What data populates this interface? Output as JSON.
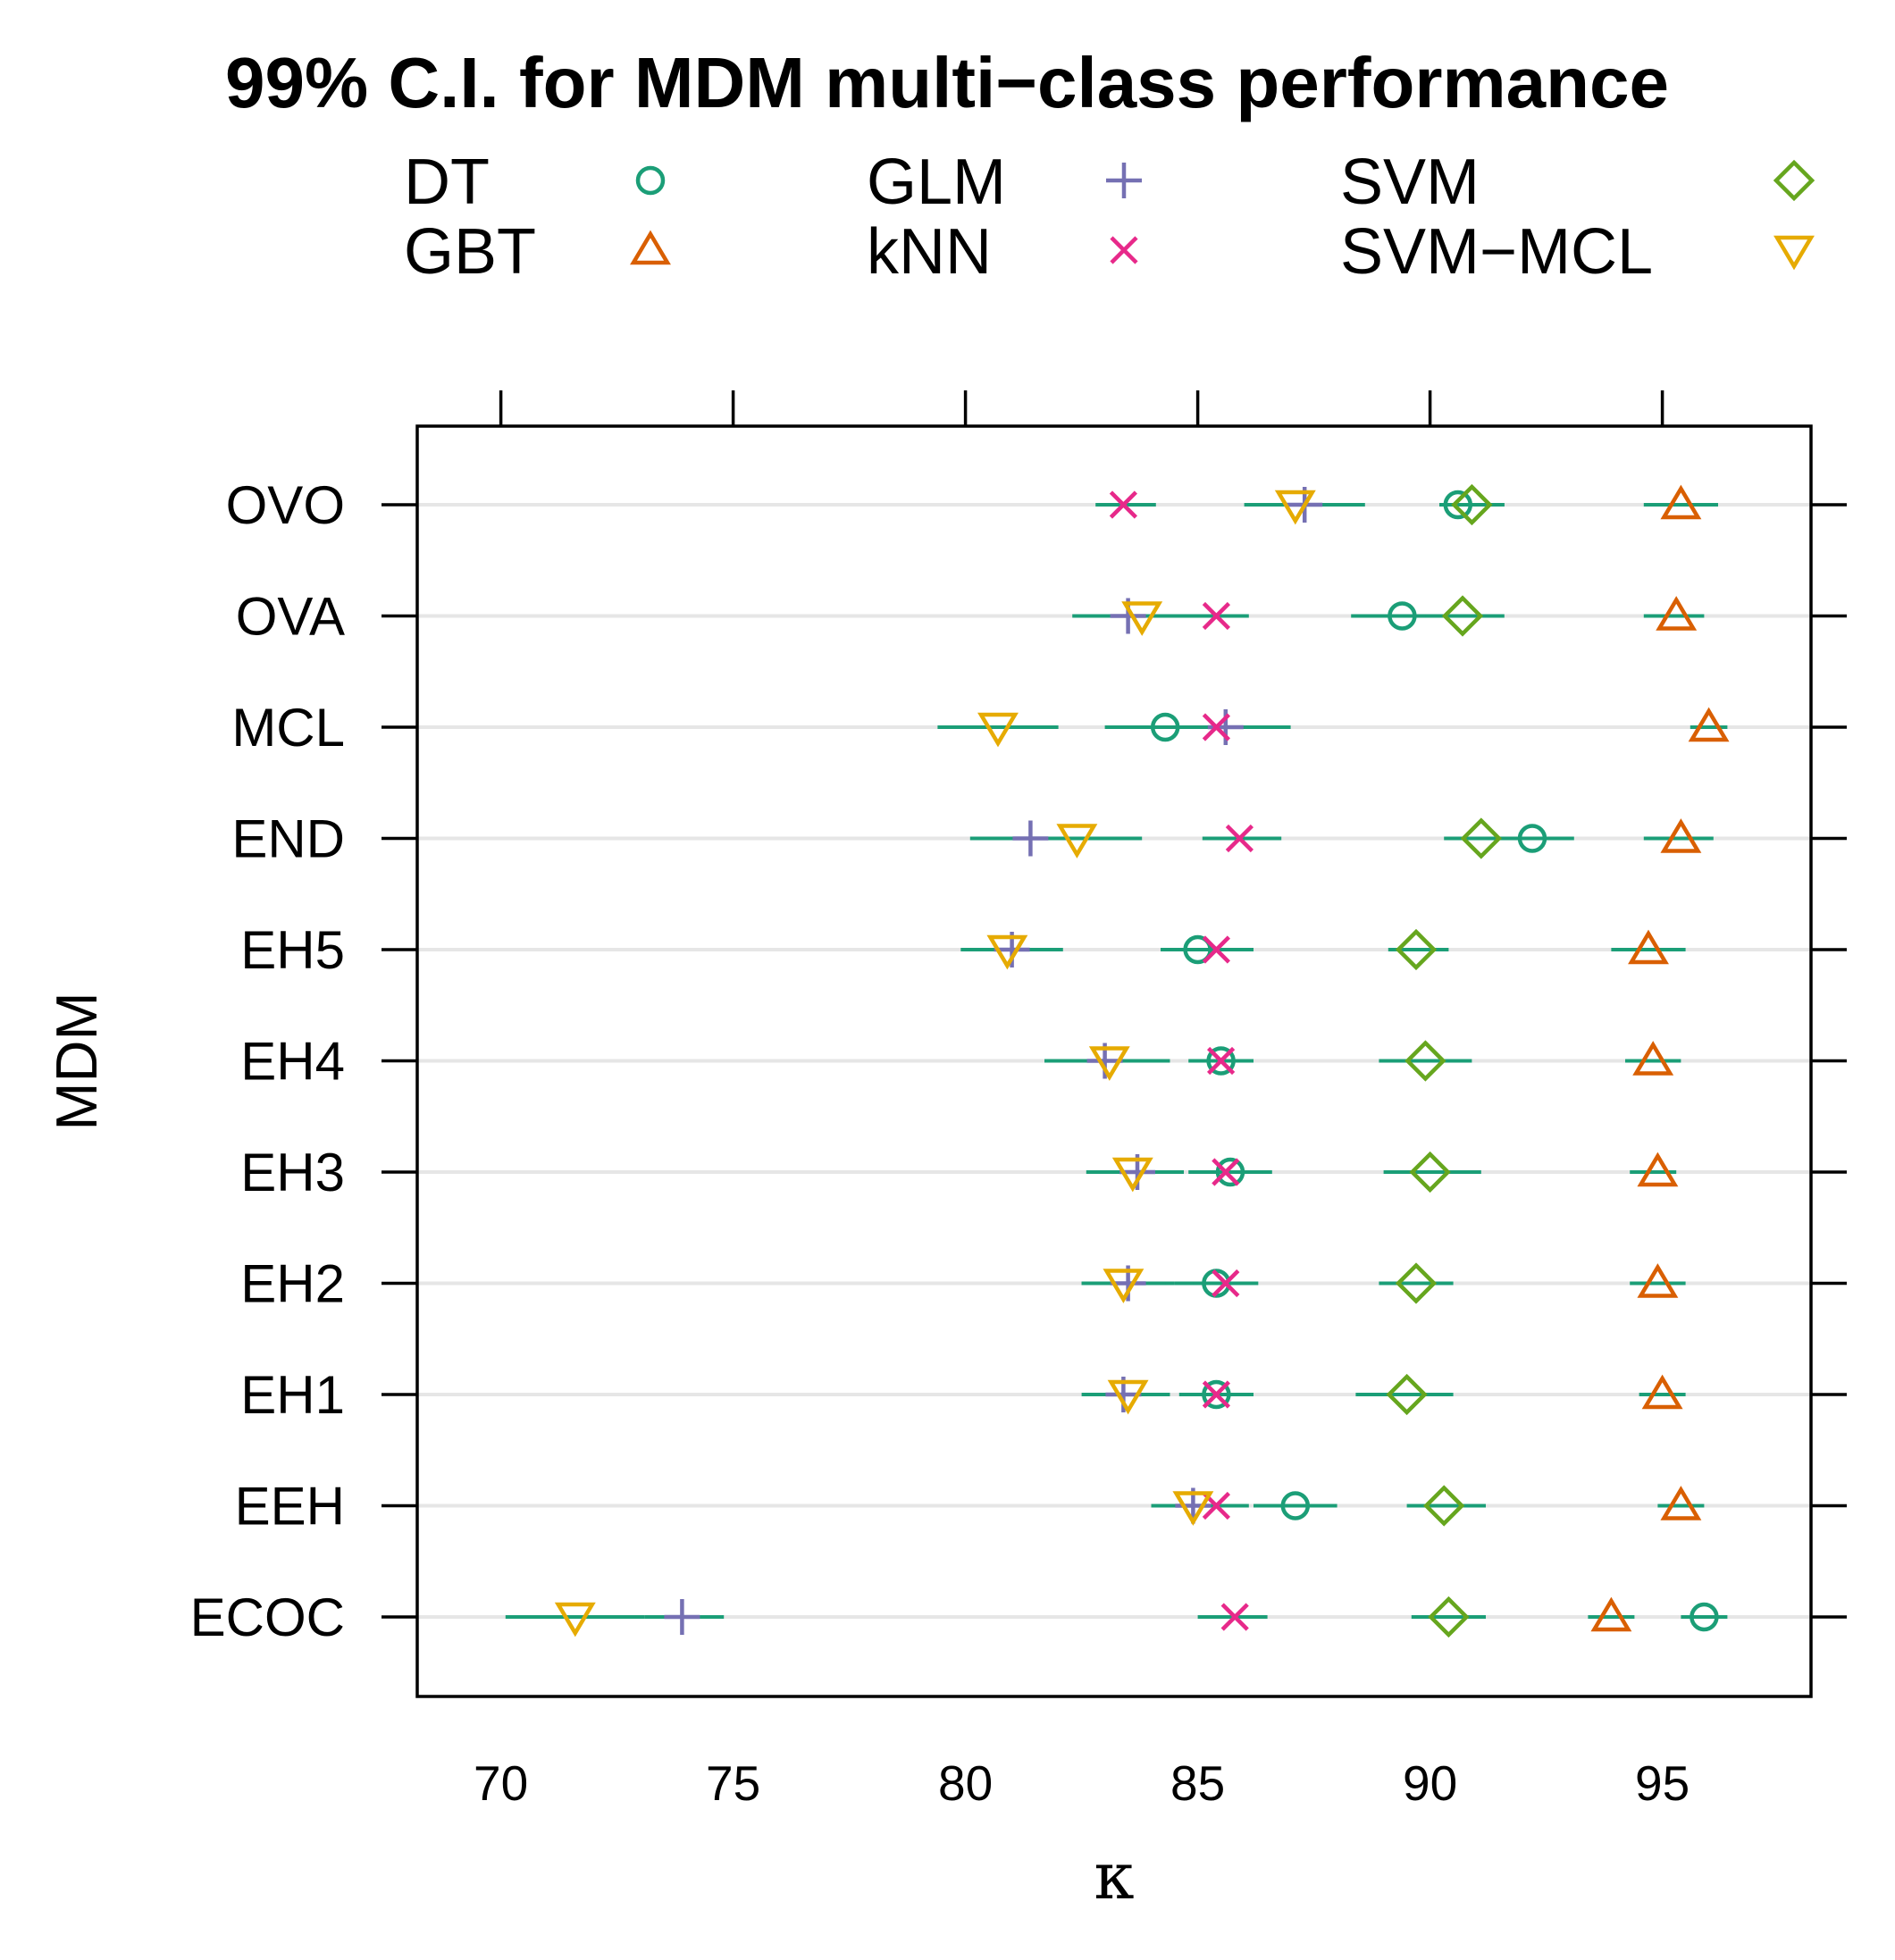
{
  "chart_data": {
    "type": "scatter",
    "title": "99% C.I. for MDM multi−class performance",
    "xlabel": "κ",
    "ylabel": "MDM",
    "xlim": [
      68.2,
      98.2
    ],
    "xticks": [
      "70",
      "75",
      "80",
      "85",
      "90",
      "95"
    ],
    "categories": [
      "OVO",
      "OVA",
      "MCL",
      "END",
      "EH5",
      "EH4",
      "EH3",
      "EH2",
      "EH1",
      "EEH",
      "ECOC"
    ],
    "colors": {
      "DT": "#1b9e77",
      "GBT": "#d95f02",
      "GLM": "#7570b3",
      "kNN": "#e7298a",
      "SVM": "#66a61e",
      "SVM-MCL": "#e6ab02",
      "ci_line": "#1b9e77",
      "grid": "#e6e6e6"
    },
    "legend": [
      {
        "name": "DT",
        "label": "DT",
        "symbol": "circle"
      },
      {
        "name": "GBT",
        "label": "GBT",
        "symbol": "triangle-up"
      },
      {
        "name": "GLM",
        "label": "GLM",
        "symbol": "plus"
      },
      {
        "name": "kNN",
        "label": "kNN",
        "symbol": "cross"
      },
      {
        "name": "SVM",
        "label": "SVM",
        "symbol": "diamond"
      },
      {
        "name": "SVM-MCL",
        "label": "SVM−MCL",
        "symbol": "triangle-down"
      }
    ],
    "series": [
      {
        "name": "DT",
        "values": [
          90.6,
          89.4,
          84.3,
          92.2,
          85.0,
          85.5,
          85.7,
          85.4,
          85.4,
          87.1,
          95.9
        ],
        "ci": [
          [
            90.2,
            91.6
          ],
          [
            88.3,
            90.5
          ],
          [
            83.0,
            85.7
          ],
          [
            91.5,
            93.1
          ],
          [
            84.2,
            85.9
          ],
          [
            84.8,
            86.2
          ],
          [
            84.8,
            86.6
          ],
          [
            84.5,
            86.3
          ],
          [
            84.6,
            86.2
          ],
          [
            86.2,
            88.0
          ],
          [
            95.4,
            96.4
          ]
        ]
      },
      {
        "name": "GBT",
        "values": [
          95.4,
          95.3,
          96.0,
          95.4,
          94.7,
          94.8,
          94.9,
          94.9,
          95.0,
          95.4,
          93.9
        ],
        "ci": [
          [
            94.6,
            96.2
          ],
          [
            94.6,
            95.9
          ],
          [
            95.6,
            96.4
          ],
          [
            94.6,
            96.1
          ],
          [
            93.9,
            95.5
          ],
          [
            94.2,
            95.4
          ],
          [
            94.3,
            95.3
          ],
          [
            94.3,
            95.5
          ],
          [
            94.5,
            95.5
          ],
          [
            94.9,
            95.9
          ],
          [
            93.4,
            94.4
          ]
        ]
      },
      {
        "name": "GLM",
        "values": [
          87.3,
          83.5,
          85.6,
          81.4,
          81.0,
          83.0,
          83.7,
          83.5,
          83.4,
          84.9,
          73.9
        ],
        "ci": [
          [
            86.1,
            88.6
          ],
          [
            82.3,
            84.7
          ],
          [
            84.2,
            87.0
          ],
          [
            80.1,
            82.6
          ],
          [
            79.9,
            82.1
          ],
          [
            81.7,
            84.4
          ],
          [
            82.6,
            84.7
          ],
          [
            82.5,
            84.5
          ],
          [
            82.5,
            84.4
          ],
          [
            84.0,
            85.8
          ],
          [
            73.1,
            74.8
          ]
        ]
      },
      {
        "name": "kNN",
        "values": [
          83.4,
          85.4,
          85.4,
          85.9,
          85.4,
          85.5,
          85.6,
          85.6,
          85.4,
          85.4,
          85.8
        ],
        "ci": [
          [
            82.8,
            84.1
          ],
          [
            84.6,
            86.1
          ],
          [
            84.7,
            86.1
          ],
          [
            85.1,
            86.8
          ],
          [
            84.6,
            86.2
          ],
          [
            84.9,
            86.2
          ],
          [
            84.9,
            86.4
          ],
          [
            84.9,
            86.3
          ],
          [
            84.7,
            86.1
          ],
          [
            84.7,
            86.1
          ],
          [
            85.0,
            86.5
          ]
        ]
      },
      {
        "name": "SVM",
        "values": [
          90.9,
          90.7,
          null,
          91.1,
          89.7,
          89.9,
          90.0,
          89.7,
          89.5,
          90.3,
          90.4
        ],
        "ci": [
          [
            90.2,
            91.6
          ],
          [
            89.9,
            91.6
          ],
          null,
          [
            90.3,
            91.9
          ],
          [
            89.1,
            90.4
          ],
          [
            88.9,
            90.9
          ],
          [
            89.0,
            91.1
          ],
          [
            88.9,
            90.5
          ],
          [
            88.4,
            90.5
          ],
          [
            89.5,
            91.2
          ],
          [
            89.6,
            91.2
          ]
        ]
      },
      {
        "name": "SVM-MCL",
        "values": [
          87.1,
          83.8,
          80.7,
          82.4,
          80.9,
          83.1,
          83.6,
          83.4,
          83.5,
          84.9,
          71.6
        ],
        "ci": [
          [
            86.0,
            88.2
          ],
          [
            82.6,
            85.0
          ],
          [
            79.4,
            82.0
          ],
          [
            81.0,
            83.8
          ],
          [
            79.9,
            82.0
          ],
          [
            81.8,
            84.4
          ],
          [
            82.7,
            84.5
          ],
          [
            82.5,
            84.3
          ],
          [
            82.6,
            84.4
          ],
          [
            84.0,
            85.8
          ],
          [
            70.1,
            73.1
          ]
        ]
      }
    ]
  }
}
